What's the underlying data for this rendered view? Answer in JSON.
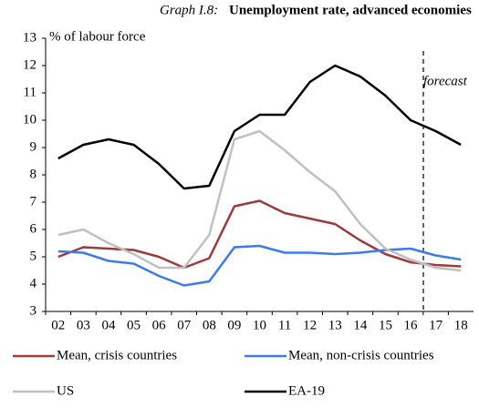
{
  "chart_data": {
    "type": "line",
    "title_label": "Graph I.8:",
    "title": "Unemployment rate, advanced economies",
    "y_label": "% of labour force",
    "annotation": "forecast",
    "categories": [
      "02",
      "03",
      "04",
      "05",
      "06",
      "07",
      "08",
      "09",
      "10",
      "11",
      "12",
      "13",
      "14",
      "15",
      "16",
      "17",
      "18"
    ],
    "series": [
      {
        "name": "Mean, crisis countries",
        "color": "#9e3a38",
        "values": [
          5.0,
          5.35,
          5.3,
          5.25,
          5.0,
          4.6,
          4.95,
          6.85,
          7.05,
          6.6,
          6.4,
          6.2,
          5.6,
          5.1,
          4.8,
          4.7,
          4.65
        ]
      },
      {
        "name": "Mean, non-crisis countries",
        "color": "#3a7bf0",
        "values": [
          5.2,
          5.15,
          4.85,
          4.75,
          4.3,
          3.95,
          4.1,
          5.35,
          5.4,
          5.15,
          5.15,
          5.1,
          5.15,
          5.25,
          5.3,
          5.05,
          4.9
        ]
      },
      {
        "name": "US",
        "color": "#c0c0c0",
        "values": [
          5.8,
          6.0,
          5.5,
          5.1,
          4.6,
          4.6,
          5.8,
          9.3,
          9.6,
          8.9,
          8.1,
          7.4,
          6.2,
          5.3,
          4.9,
          4.6,
          4.5
        ]
      },
      {
        "name": "EA-19",
        "color": "#000000",
        "values": [
          8.6,
          9.1,
          9.3,
          9.1,
          8.4,
          7.5,
          7.6,
          9.6,
          10.2,
          10.2,
          11.4,
          12.0,
          11.6,
          10.9,
          10.0,
          9.6,
          9.1
        ]
      }
    ],
    "ylim": [
      3,
      13
    ],
    "yticks": [
      3,
      4,
      5,
      6,
      7,
      8,
      9,
      10,
      11,
      12,
      13
    ]
  }
}
